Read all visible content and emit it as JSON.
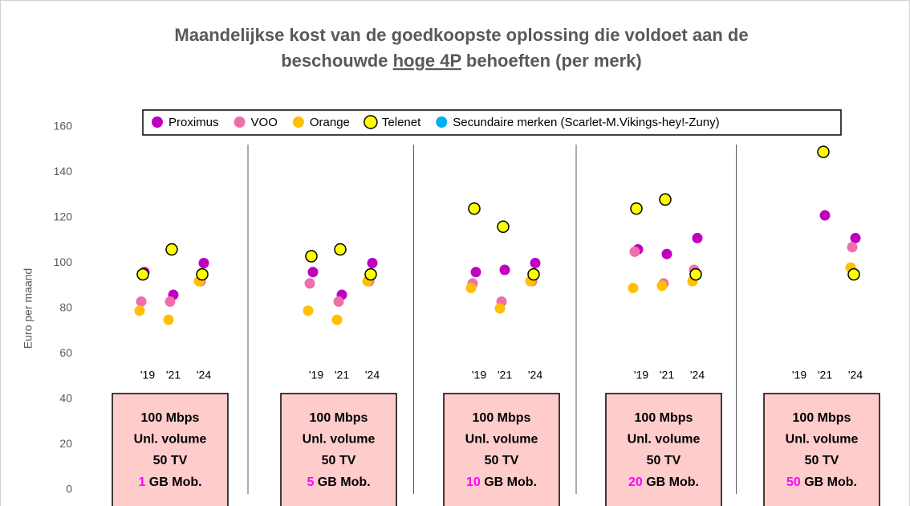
{
  "chart_data": {
    "type": "dot",
    "title": {
      "line1": "Maandelijkse kost van de goedkoopste oplossing die voldoet aan de",
      "line2_start": "beschouwde",
      "line2_underlined": "hoge 4P",
      "line2_end": "behoeften (per merk)"
    },
    "ylabel": "Euro per maand",
    "ylim": [
      0,
      160
    ],
    "yticks": [
      0,
      20,
      40,
      60,
      80,
      100,
      120,
      140,
      160
    ],
    "years": [
      "'19",
      "'21",
      "'24"
    ],
    "groups": [
      {
        "lines": [
          "100 Mbps",
          "Unl. volume",
          "50 TV"
        ],
        "mob_value": 1,
        "mob_unit": "GB Mob."
      },
      {
        "lines": [
          "100 Mbps",
          "Unl. volume",
          "50 TV"
        ],
        "mob_value": 5,
        "mob_unit": "GB Mob."
      },
      {
        "lines": [
          "100 Mbps",
          "Unl. volume",
          "50 TV"
        ],
        "mob_value": 10,
        "mob_unit": "GB Mob."
      },
      {
        "lines": [
          "100 Mbps",
          "Unl. volume",
          "50 TV"
        ],
        "mob_value": 20,
        "mob_unit": "GB Mob."
      },
      {
        "lines": [
          "100 Mbps",
          "Unl. volume",
          "50 TV"
        ],
        "mob_value": 50,
        "mob_unit": "GB Mob."
      }
    ],
    "series": [
      {
        "name": "Proximus",
        "color": "#c000c0",
        "values": [
          96,
          86,
          100,
          96,
          86,
          100,
          96,
          97,
          100,
          106,
          104,
          111,
          null,
          121,
          111
        ]
      },
      {
        "name": "VOO",
        "color": "#f06eaa",
        "values": [
          83,
          83,
          92,
          91,
          83,
          92,
          91,
          83,
          92,
          105,
          91,
          97,
          null,
          null,
          107
        ]
      },
      {
        "name": "Orange",
        "color": "#ffc000",
        "values": [
          79,
          75,
          92,
          79,
          75,
          92,
          89,
          80,
          92,
          89,
          90,
          92,
          null,
          null,
          98
        ]
      },
      {
        "name": "Telenet",
        "color": "#ffff00",
        "edge": "#000000",
        "values": [
          95,
          106,
          95,
          103,
          106,
          95,
          124,
          116,
          95,
          124,
          128,
          95,
          null,
          149,
          95
        ]
      },
      {
        "name": "Secundaire merken (Scarlet-M.Vikings-hey!-Zuny)",
        "color": "#00b0f0",
        "values": [
          null,
          null,
          null,
          null,
          null,
          null,
          null,
          null,
          null,
          null,
          null,
          null,
          null,
          null,
          null
        ]
      }
    ]
  }
}
